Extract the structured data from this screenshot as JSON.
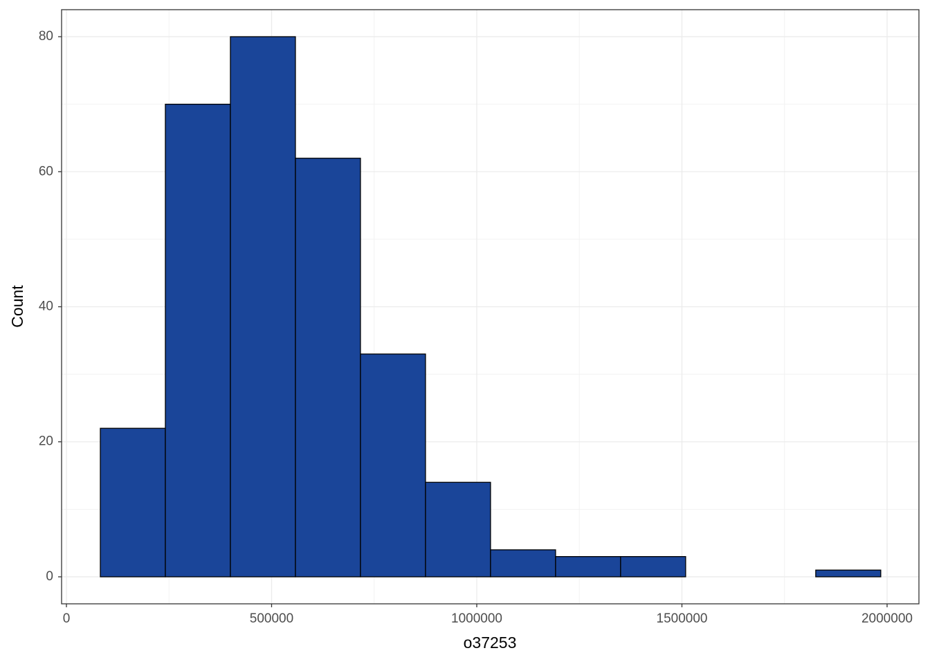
{
  "chart_data": {
    "type": "histogram",
    "x_label": "o37253",
    "y_label": "Count",
    "bins": [
      82600,
      241100,
      399600,
      558100,
      716600,
      875100,
      1033600,
      1192100,
      1350600,
      1509100,
      1667600,
      1826100,
      1984600
    ],
    "values": [
      22,
      70,
      80,
      62,
      33,
      14,
      4,
      3,
      3,
      0,
      0,
      1
    ],
    "color": "#1a4599",
    "edgecolor": "#000000",
    "xlim": [
      -11800,
      2077600
    ],
    "xticks": [
      0,
      500000,
      1000000,
      1500000,
      2000000
    ],
    "ylim": [
      -4,
      84
    ],
    "yticks": [
      0,
      20,
      40,
      60,
      80
    ],
    "grid": true
  }
}
